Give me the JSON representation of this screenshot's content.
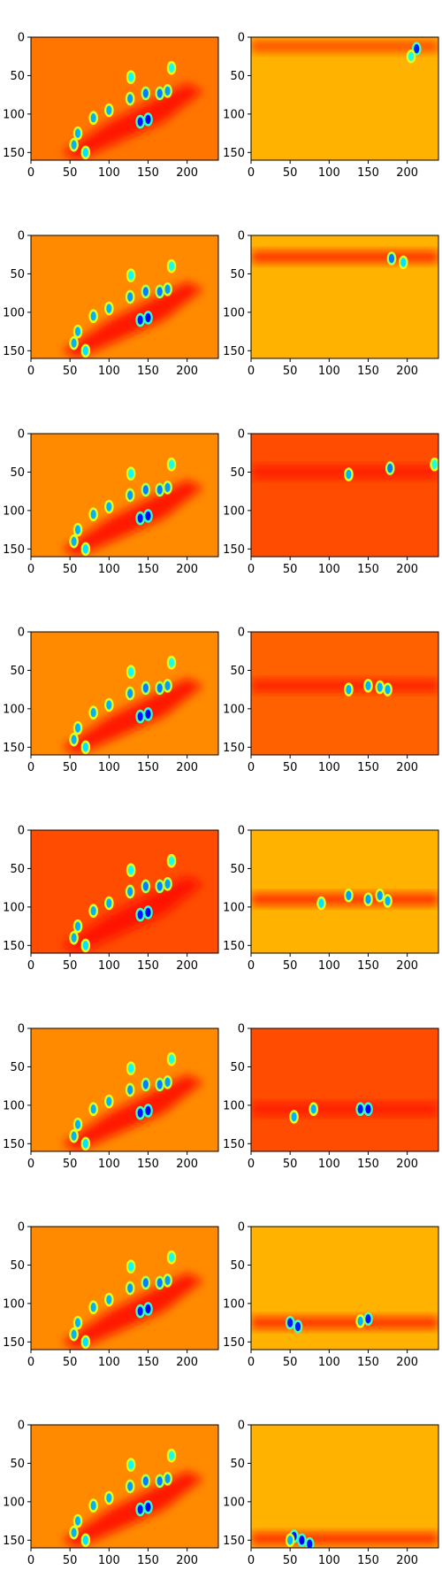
{
  "chart_data": {
    "type": "heatmap",
    "colormap": "jet",
    "grid": false,
    "layout": {
      "rows": 8,
      "cols": 2
    },
    "image_shape": [
      160,
      240
    ],
    "xlim": [
      0,
      240
    ],
    "ylim": [
      160,
      0
    ],
    "x_ticks": [
      0,
      50,
      100,
      150,
      200
    ],
    "y_ticks": [
      0,
      50,
      100,
      150
    ],
    "panels": [
      {
        "id": "r1-left",
        "row": 0,
        "col": 0,
        "base": 0.76,
        "dark_band": null,
        "dark_strength": 0.0,
        "blobs": [
          [
            140,
            110,
            0.15
          ],
          [
            150,
            107,
            0.12
          ],
          [
            147,
            73,
            0.25
          ],
          [
            165,
            73,
            0.25
          ],
          [
            175,
            70,
            0.28
          ],
          [
            127,
            80,
            0.28
          ],
          [
            100,
            95,
            0.3
          ],
          [
            80,
            105,
            0.3
          ],
          [
            60,
            125,
            0.3
          ],
          [
            55,
            140,
            0.3
          ],
          [
            70,
            150,
            0.35
          ],
          [
            128,
            52,
            0.38
          ],
          [
            180,
            40,
            0.4
          ]
        ]
      },
      {
        "id": "r1-right",
        "row": 0,
        "col": 1,
        "base": 0.7,
        "dark_band": 12,
        "dark_strength": 0.7,
        "blobs": [
          [
            212,
            15,
            0.15
          ],
          [
            205,
            25,
            0.4
          ]
        ]
      },
      {
        "id": "r2-left",
        "row": 1,
        "col": 0,
        "base": 0.74,
        "dark_band": null,
        "dark_strength": 0.0,
        "blobs": [
          [
            140,
            110,
            0.15
          ],
          [
            150,
            107,
            0.12
          ],
          [
            147,
            73,
            0.25
          ],
          [
            165,
            73,
            0.25
          ],
          [
            175,
            70,
            0.28
          ],
          [
            127,
            80,
            0.28
          ],
          [
            100,
            95,
            0.3
          ],
          [
            80,
            105,
            0.3
          ],
          [
            60,
            125,
            0.3
          ],
          [
            55,
            140,
            0.3
          ],
          [
            70,
            150,
            0.35
          ],
          [
            128,
            52,
            0.38
          ],
          [
            180,
            40,
            0.4
          ]
        ]
      },
      {
        "id": "r2-right",
        "row": 1,
        "col": 1,
        "base": 0.7,
        "dark_band": 28,
        "dark_strength": 0.5,
        "blobs": [
          [
            180,
            30,
            0.25
          ],
          [
            195,
            35,
            0.35
          ]
        ]
      },
      {
        "id": "r3-left",
        "row": 2,
        "col": 0,
        "base": 0.74,
        "dark_band": null,
        "dark_strength": 0.0,
        "blobs": [
          [
            140,
            110,
            0.15
          ],
          [
            150,
            107,
            0.12
          ],
          [
            147,
            73,
            0.25
          ],
          [
            165,
            73,
            0.25
          ],
          [
            175,
            70,
            0.28
          ],
          [
            127,
            80,
            0.28
          ],
          [
            100,
            95,
            0.3
          ],
          [
            80,
            105,
            0.3
          ],
          [
            60,
            125,
            0.3
          ],
          [
            55,
            140,
            0.3
          ],
          [
            70,
            150,
            0.35
          ],
          [
            128,
            52,
            0.38
          ],
          [
            180,
            40,
            0.4
          ]
        ]
      },
      {
        "id": "r3-right",
        "row": 2,
        "col": 1,
        "base": 0.8,
        "dark_band": 50,
        "dark_strength": 0.6,
        "blobs": [
          [
            125,
            53,
            0.3
          ],
          [
            178,
            45,
            0.25
          ],
          [
            235,
            40,
            0.4
          ]
        ]
      },
      {
        "id": "r4-left",
        "row": 3,
        "col": 0,
        "base": 0.74,
        "dark_band": null,
        "dark_strength": 0.0,
        "blobs": [
          [
            140,
            110,
            0.15
          ],
          [
            150,
            107,
            0.12
          ],
          [
            147,
            73,
            0.25
          ],
          [
            165,
            73,
            0.25
          ],
          [
            175,
            70,
            0.28
          ],
          [
            127,
            80,
            0.28
          ],
          [
            100,
            95,
            0.3
          ],
          [
            80,
            105,
            0.3
          ],
          [
            60,
            125,
            0.3
          ],
          [
            55,
            140,
            0.3
          ],
          [
            70,
            150,
            0.35
          ],
          [
            128,
            52,
            0.38
          ],
          [
            180,
            40,
            0.4
          ]
        ]
      },
      {
        "id": "r4-right",
        "row": 3,
        "col": 1,
        "base": 0.78,
        "dark_band": 70,
        "dark_strength": 0.6,
        "blobs": [
          [
            125,
            75,
            0.3
          ],
          [
            150,
            70,
            0.3
          ],
          [
            165,
            72,
            0.3
          ],
          [
            175,
            75,
            0.3
          ]
        ]
      },
      {
        "id": "r5-left",
        "row": 4,
        "col": 0,
        "base": 0.8,
        "dark_band": null,
        "dark_strength": 0.0,
        "blobs": [
          [
            140,
            110,
            0.15
          ],
          [
            150,
            107,
            0.12
          ],
          [
            147,
            73,
            0.25
          ],
          [
            165,
            73,
            0.25
          ],
          [
            175,
            70,
            0.28
          ],
          [
            127,
            80,
            0.28
          ],
          [
            100,
            95,
            0.3
          ],
          [
            80,
            105,
            0.3
          ],
          [
            60,
            125,
            0.3
          ],
          [
            55,
            140,
            0.3
          ],
          [
            70,
            150,
            0.35
          ],
          [
            128,
            52,
            0.38
          ],
          [
            180,
            40,
            0.4
          ]
        ]
      },
      {
        "id": "r5-right",
        "row": 4,
        "col": 1,
        "base": 0.7,
        "dark_band": 90,
        "dark_strength": 0.5,
        "blobs": [
          [
            125,
            85,
            0.28
          ],
          [
            150,
            90,
            0.28
          ],
          [
            165,
            85,
            0.28
          ],
          [
            90,
            95,
            0.35
          ],
          [
            175,
            92,
            0.3
          ]
        ]
      },
      {
        "id": "r6-left",
        "row": 5,
        "col": 0,
        "base": 0.74,
        "dark_band": null,
        "dark_strength": 0.0,
        "blobs": [
          [
            140,
            110,
            0.15
          ],
          [
            150,
            107,
            0.12
          ],
          [
            147,
            73,
            0.25
          ],
          [
            165,
            73,
            0.25
          ],
          [
            175,
            70,
            0.28
          ],
          [
            127,
            80,
            0.28
          ],
          [
            100,
            95,
            0.3
          ],
          [
            80,
            105,
            0.3
          ],
          [
            60,
            125,
            0.3
          ],
          [
            55,
            140,
            0.3
          ],
          [
            70,
            150,
            0.35
          ],
          [
            128,
            52,
            0.38
          ],
          [
            180,
            40,
            0.4
          ]
        ]
      },
      {
        "id": "r6-right",
        "row": 5,
        "col": 1,
        "base": 0.8,
        "dark_band": 105,
        "dark_strength": 0.5,
        "blobs": [
          [
            140,
            105,
            0.15
          ],
          [
            150,
            105,
            0.12
          ],
          [
            80,
            105,
            0.3
          ],
          [
            55,
            115,
            0.3
          ]
        ]
      },
      {
        "id": "r7-left",
        "row": 6,
        "col": 0,
        "base": 0.74,
        "dark_band": null,
        "dark_strength": 0.0,
        "blobs": [
          [
            140,
            110,
            0.15
          ],
          [
            150,
            107,
            0.12
          ],
          [
            147,
            73,
            0.25
          ],
          [
            165,
            73,
            0.25
          ],
          [
            175,
            70,
            0.28
          ],
          [
            127,
            80,
            0.28
          ],
          [
            100,
            95,
            0.3
          ],
          [
            80,
            105,
            0.3
          ],
          [
            60,
            125,
            0.3
          ],
          [
            55,
            140,
            0.3
          ],
          [
            70,
            150,
            0.35
          ],
          [
            128,
            52,
            0.38
          ],
          [
            180,
            40,
            0.4
          ]
        ]
      },
      {
        "id": "r7-right",
        "row": 6,
        "col": 1,
        "base": 0.7,
        "dark_band": 125,
        "dark_strength": 0.5,
        "blobs": [
          [
            50,
            125,
            0.15
          ],
          [
            60,
            130,
            0.15
          ],
          [
            150,
            120,
            0.15
          ],
          [
            140,
            123,
            0.3
          ]
        ]
      },
      {
        "id": "r8-left",
        "row": 7,
        "col": 0,
        "base": 0.74,
        "dark_band": null,
        "dark_strength": 0.0,
        "blobs": [
          [
            140,
            110,
            0.15
          ],
          [
            150,
            107,
            0.12
          ],
          [
            147,
            73,
            0.25
          ],
          [
            165,
            73,
            0.25
          ],
          [
            175,
            70,
            0.28
          ],
          [
            127,
            80,
            0.28
          ],
          [
            100,
            95,
            0.3
          ],
          [
            80,
            105,
            0.3
          ],
          [
            60,
            125,
            0.3
          ],
          [
            55,
            140,
            0.3
          ],
          [
            70,
            150,
            0.35
          ],
          [
            128,
            52,
            0.38
          ],
          [
            180,
            40,
            0.4
          ]
        ]
      },
      {
        "id": "r8-right",
        "row": 7,
        "col": 1,
        "base": 0.7,
        "dark_band": 148,
        "dark_strength": 0.5,
        "blobs": [
          [
            55,
            145,
            0.15
          ],
          [
            65,
            150,
            0.12
          ],
          [
            75,
            155,
            0.15
          ],
          [
            50,
            150,
            0.3
          ]
        ]
      }
    ]
  }
}
